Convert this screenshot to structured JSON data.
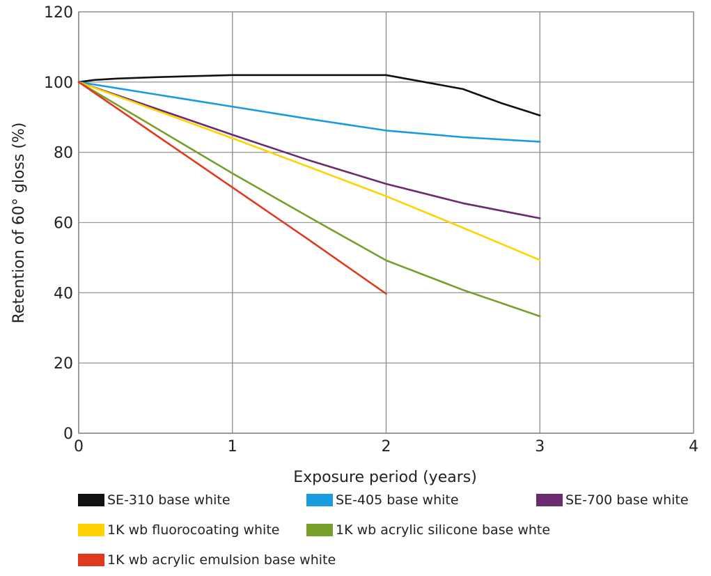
{
  "chart_data": {
    "type": "line",
    "xlabel": "Exposure period (years)",
    "ylabel": "Retention of 60° gloss (%)",
    "xlim": [
      0,
      4
    ],
    "ylim": [
      0,
      120
    ],
    "x_ticks": [
      "0",
      "1",
      "2",
      "3",
      "4"
    ],
    "y_ticks": [
      "0",
      "20",
      "40",
      "60",
      "80",
      "100",
      "120"
    ],
    "grid": true,
    "legend_position": "bottom",
    "series": [
      {
        "name": "SE-310 base white",
        "color": "#111111",
        "points": [
          [
            0,
            100
          ],
          [
            0.1,
            100.6
          ],
          [
            0.25,
            101
          ],
          [
            0.5,
            101.4
          ],
          [
            1,
            102
          ],
          [
            1.5,
            102
          ],
          [
            2,
            102
          ],
          [
            2.25,
            100
          ],
          [
            2.5,
            98
          ],
          [
            2.75,
            94
          ],
          [
            3,
            90.5
          ]
        ]
      },
      {
        "name": "SE-405 base white",
        "color": "#1a9be0",
        "points": [
          [
            0,
            100
          ],
          [
            0.5,
            96.5
          ],
          [
            1,
            93
          ],
          [
            1.5,
            89.5
          ],
          [
            2,
            86.2
          ],
          [
            2.5,
            84.3
          ],
          [
            3,
            83
          ]
        ]
      },
      {
        "name": "SE-700 base white",
        "color": "#6a2c6e",
        "points": [
          [
            0,
            100
          ],
          [
            1,
            85
          ],
          [
            1.5,
            77.7
          ],
          [
            2,
            71
          ],
          [
            2.5,
            65.5
          ],
          [
            3,
            61.2
          ]
        ]
      },
      {
        "name": "1K wb fluorocoating white",
        "color": "#ffd200",
        "points": [
          [
            0,
            100
          ],
          [
            1,
            84
          ],
          [
            1.5,
            75.8
          ],
          [
            2,
            67.5
          ],
          [
            2.5,
            58.5
          ],
          [
            3,
            49.3
          ]
        ]
      },
      {
        "name": "1K wb acrylic silicone base whte",
        "color": "#76a02a",
        "points": [
          [
            0,
            100
          ],
          [
            0.5,
            87
          ],
          [
            1,
            74
          ],
          [
            1.5,
            61.5
          ],
          [
            2,
            49.2
          ],
          [
            2.5,
            40.8
          ],
          [
            3,
            33.3
          ]
        ]
      },
      {
        "name": "1K wb acrylic emulsion base white",
        "color": "#e03a1e",
        "points": [
          [
            0,
            100
          ],
          [
            0.5,
            85
          ],
          [
            1,
            70
          ],
          [
            1.5,
            55
          ],
          [
            2,
            39.7
          ]
        ]
      }
    ]
  }
}
